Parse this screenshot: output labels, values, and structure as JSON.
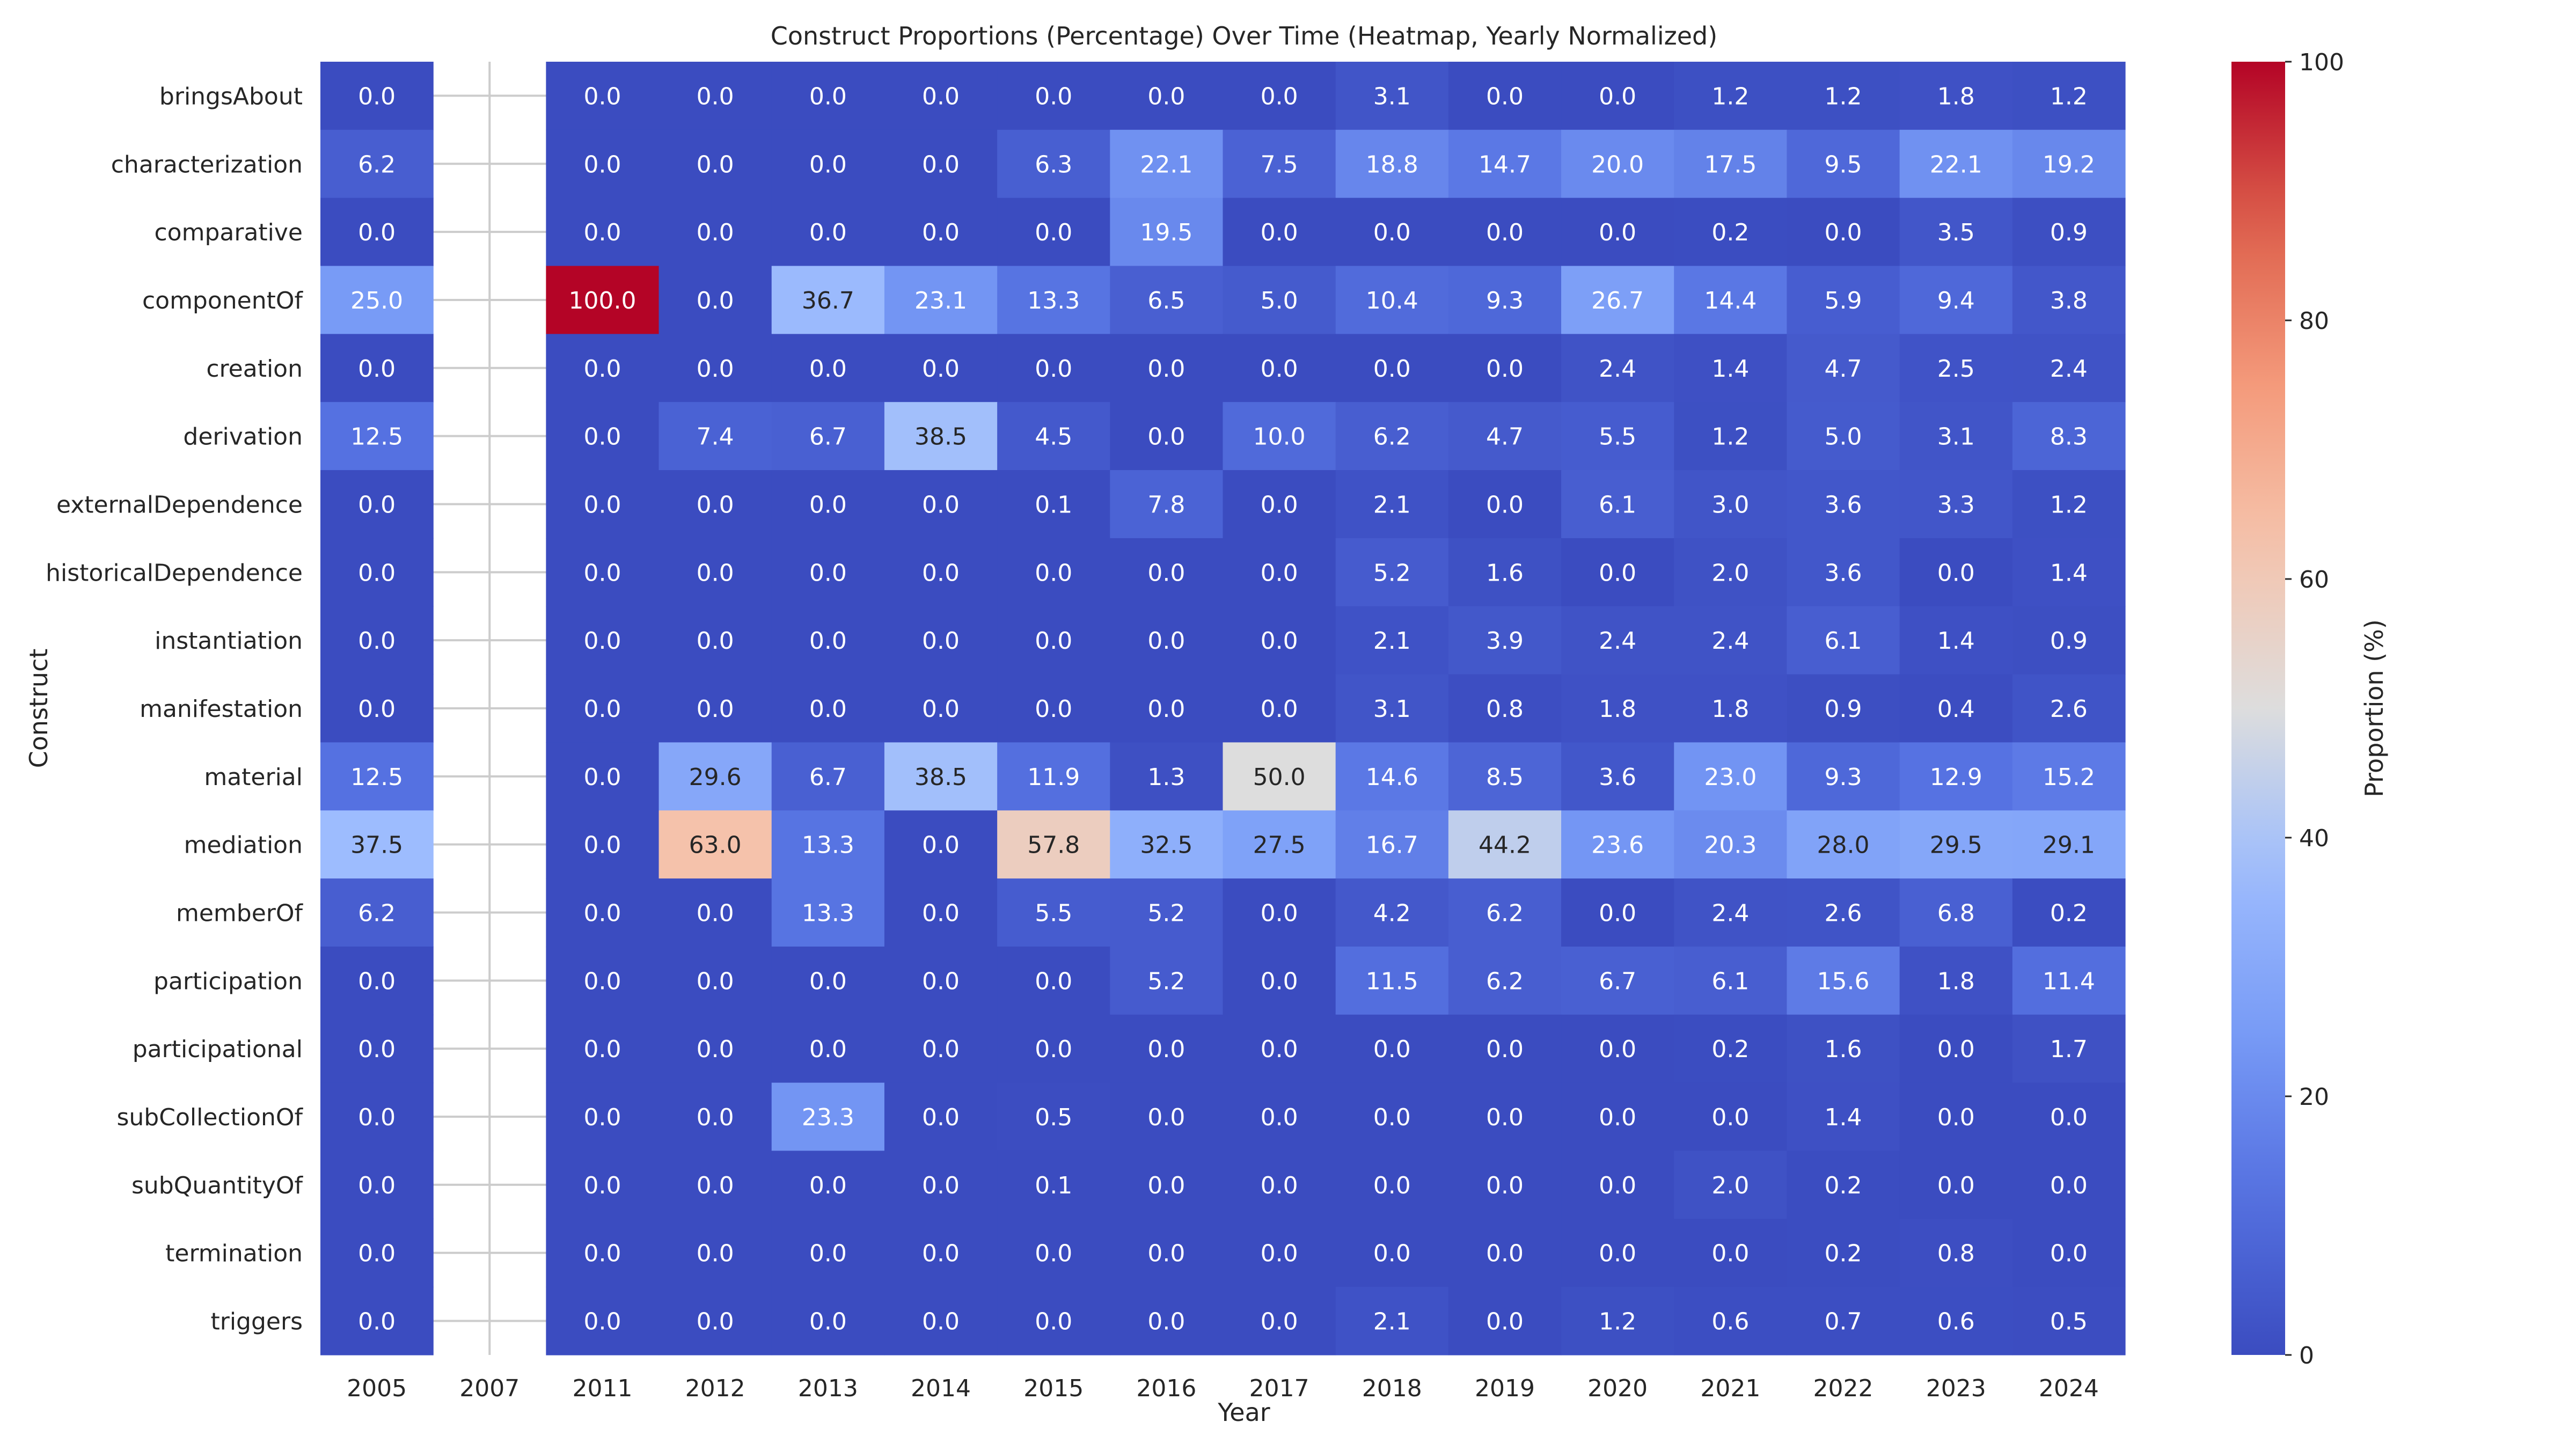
{
  "chart_data": {
    "type": "heatmap",
    "title": "Construct Proportions (Percentage) Over Time (Heatmap, Yearly Normalized)",
    "xlabel": "Year",
    "ylabel": "Construct",
    "colorbar_label": "Proportion (%)",
    "colormap": "coolwarm",
    "color_range": [
      0,
      100
    ],
    "colorbar_ticks": [
      0,
      20,
      40,
      60,
      80,
      100
    ],
    "colorbar_tick_labels": [
      "0",
      "20",
      "40",
      "60",
      "80",
      "100"
    ],
    "missing_column_color": "#ffffff",
    "grid_color": "#cccccc",
    "x": [
      "2005",
      "2007",
      "2011",
      "2012",
      "2013",
      "2014",
      "2015",
      "2016",
      "2017",
      "2018",
      "2019",
      "2020",
      "2021",
      "2022",
      "2023",
      "2024"
    ],
    "y": [
      "bringsAbout",
      "characterization",
      "comparative",
      "componentOf",
      "creation",
      "derivation",
      "externalDependence",
      "historicalDependence",
      "instantiation",
      "manifestation",
      "material",
      "mediation",
      "memberOf",
      "participation",
      "participational",
      "subCollectionOf",
      "subQuantityOf",
      "termination",
      "triggers"
    ],
    "values": [
      [
        0.0,
        null,
        0.0,
        0.0,
        0.0,
        0.0,
        0.0,
        0.0,
        0.0,
        3.1,
        0.0,
        0.0,
        1.2,
        1.2,
        1.8,
        1.2
      ],
      [
        6.2,
        null,
        0.0,
        0.0,
        0.0,
        0.0,
        6.3,
        22.1,
        7.5,
        18.8,
        14.7,
        20.0,
        17.5,
        9.5,
        22.1,
        19.2
      ],
      [
        0.0,
        null,
        0.0,
        0.0,
        0.0,
        0.0,
        0.0,
        19.5,
        0.0,
        0.0,
        0.0,
        0.0,
        0.2,
        0.0,
        3.5,
        0.9
      ],
      [
        25.0,
        null,
        100.0,
        0.0,
        36.7,
        23.1,
        13.3,
        6.5,
        5.0,
        10.4,
        9.3,
        26.7,
        14.4,
        5.9,
        9.4,
        3.8
      ],
      [
        0.0,
        null,
        0.0,
        0.0,
        0.0,
        0.0,
        0.0,
        0.0,
        0.0,
        0.0,
        0.0,
        2.4,
        1.4,
        4.7,
        2.5,
        2.4
      ],
      [
        12.5,
        null,
        0.0,
        7.4,
        6.7,
        38.5,
        4.5,
        0.0,
        10.0,
        6.2,
        4.7,
        5.5,
        1.2,
        5.0,
        3.1,
        8.3
      ],
      [
        0.0,
        null,
        0.0,
        0.0,
        0.0,
        0.0,
        0.1,
        7.8,
        0.0,
        2.1,
        0.0,
        6.1,
        3.0,
        3.6,
        3.3,
        1.2
      ],
      [
        0.0,
        null,
        0.0,
        0.0,
        0.0,
        0.0,
        0.0,
        0.0,
        0.0,
        5.2,
        1.6,
        0.0,
        2.0,
        3.6,
        0.0,
        1.4
      ],
      [
        0.0,
        null,
        0.0,
        0.0,
        0.0,
        0.0,
        0.0,
        0.0,
        0.0,
        2.1,
        3.9,
        2.4,
        2.4,
        6.1,
        1.4,
        0.9
      ],
      [
        0.0,
        null,
        0.0,
        0.0,
        0.0,
        0.0,
        0.0,
        0.0,
        0.0,
        3.1,
        0.8,
        1.8,
        1.8,
        0.9,
        0.4,
        2.6
      ],
      [
        12.5,
        null,
        0.0,
        29.6,
        6.7,
        38.5,
        11.9,
        1.3,
        50.0,
        14.6,
        8.5,
        3.6,
        23.0,
        9.3,
        12.9,
        15.2
      ],
      [
        37.5,
        null,
        0.0,
        63.0,
        13.3,
        0.0,
        57.8,
        32.5,
        27.5,
        16.7,
        44.2,
        23.6,
        20.3,
        28.0,
        29.5,
        29.1
      ],
      [
        6.2,
        null,
        0.0,
        0.0,
        13.3,
        0.0,
        5.5,
        5.2,
        0.0,
        4.2,
        6.2,
        0.0,
        2.4,
        2.6,
        6.8,
        0.2
      ],
      [
        0.0,
        null,
        0.0,
        0.0,
        0.0,
        0.0,
        0.0,
        5.2,
        0.0,
        11.5,
        6.2,
        6.7,
        6.1,
        15.6,
        1.8,
        11.4
      ],
      [
        0.0,
        null,
        0.0,
        0.0,
        0.0,
        0.0,
        0.0,
        0.0,
        0.0,
        0.0,
        0.0,
        0.0,
        0.2,
        1.6,
        0.0,
        1.7
      ],
      [
        0.0,
        null,
        0.0,
        0.0,
        23.3,
        0.0,
        0.5,
        0.0,
        0.0,
        0.0,
        0.0,
        0.0,
        0.0,
        1.4,
        0.0,
        0.0
      ],
      [
        0.0,
        null,
        0.0,
        0.0,
        0.0,
        0.0,
        0.1,
        0.0,
        0.0,
        0.0,
        0.0,
        0.0,
        2.0,
        0.2,
        0.0,
        0.0
      ],
      [
        0.0,
        null,
        0.0,
        0.0,
        0.0,
        0.0,
        0.0,
        0.0,
        0.0,
        0.0,
        0.0,
        0.0,
        0.0,
        0.2,
        0.8,
        0.0
      ],
      [
        0.0,
        null,
        0.0,
        0.0,
        0.0,
        0.0,
        0.0,
        0.0,
        0.0,
        2.1,
        0.0,
        1.2,
        0.6,
        0.7,
        0.6,
        0.5
      ]
    ]
  }
}
